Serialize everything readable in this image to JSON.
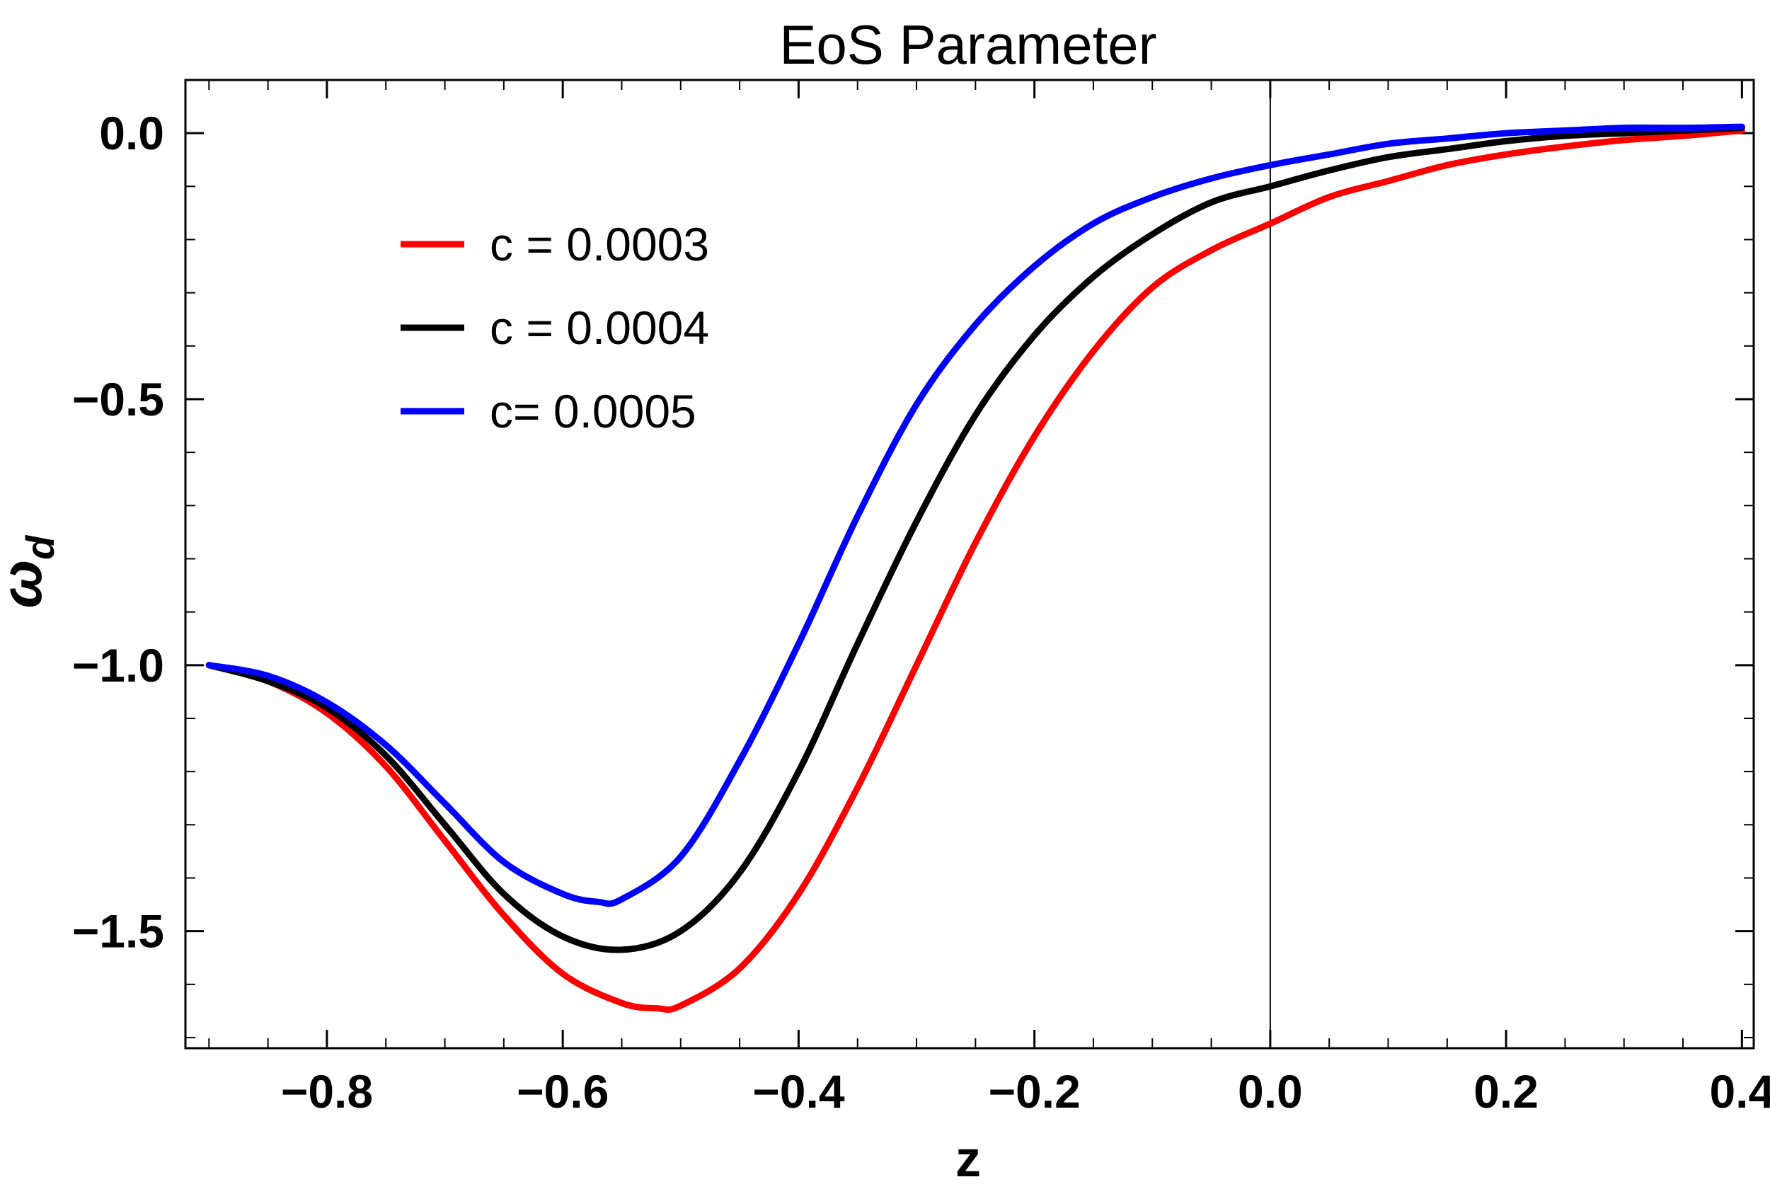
{
  "chart_data": {
    "type": "line",
    "title": "EoS Parameter",
    "xlabel": "z",
    "ylabel": {
      "main": "ω",
      "sub": "d"
    },
    "xlim": [
      -0.92,
      0.41
    ],
    "ylim": [
      -1.72,
      0.1
    ],
    "xticks": [
      -0.8,
      -0.6,
      -0.4,
      -0.2,
      0.0,
      0.2,
      0.4
    ],
    "xtick_labels": [
      "−0.8",
      "−0.6",
      "−0.4",
      "−0.2",
      "0.0",
      "0.2",
      "0.4"
    ],
    "yticks": [
      0.0,
      -0.5,
      -1.0,
      -1.5
    ],
    "ytick_labels": [
      "0.0",
      "−0.5",
      "−1.0",
      "−1.5"
    ],
    "x_minor_step": 0.05,
    "y_minor_step": 0.1,
    "reference_line_x": 0.0,
    "legend_position": "upper-left",
    "series": [
      {
        "name": "c = 0.0003",
        "color": "#ff0000",
        "x": [
          -0.9,
          -0.85,
          -0.8,
          -0.75,
          -0.7,
          -0.65,
          -0.6,
          -0.55,
          -0.52,
          -0.5,
          -0.45,
          -0.4,
          -0.35,
          -0.3,
          -0.25,
          -0.2,
          -0.15,
          -0.1,
          -0.05,
          0.0,
          0.05,
          0.1,
          0.15,
          0.2,
          0.25,
          0.3,
          0.35,
          0.4
        ],
        "values": [
          -1.0,
          -1.03,
          -1.09,
          -1.19,
          -1.33,
          -1.47,
          -1.58,
          -1.635,
          -1.645,
          -1.64,
          -1.57,
          -1.43,
          -1.23,
          -1.0,
          -0.77,
          -0.57,
          -0.41,
          -0.29,
          -0.22,
          -0.17,
          -0.12,
          -0.09,
          -0.06,
          -0.04,
          -0.025,
          -0.013,
          -0.005,
          0.005
        ]
      },
      {
        "name": "c = 0.0004",
        "color": "#000000",
        "x": [
          -0.9,
          -0.85,
          -0.8,
          -0.75,
          -0.7,
          -0.65,
          -0.6,
          -0.55,
          -0.5,
          -0.45,
          -0.4,
          -0.35,
          -0.3,
          -0.25,
          -0.2,
          -0.15,
          -0.1,
          -0.05,
          0.0,
          0.05,
          0.1,
          0.15,
          0.2,
          0.25,
          0.3,
          0.35,
          0.4
        ],
        "values": [
          -1.0,
          -1.03,
          -1.08,
          -1.17,
          -1.3,
          -1.43,
          -1.51,
          -1.535,
          -1.5,
          -1.39,
          -1.2,
          -0.96,
          -0.73,
          -0.53,
          -0.38,
          -0.27,
          -0.19,
          -0.13,
          -0.1,
          -0.07,
          -0.045,
          -0.03,
          -0.015,
          -0.005,
          0.0,
          0.005,
          0.01
        ]
      },
      {
        "name": "c= 0.0005",
        "color": "#0000ff",
        "x": [
          -0.9,
          -0.85,
          -0.8,
          -0.75,
          -0.7,
          -0.65,
          -0.6,
          -0.57,
          -0.55,
          -0.5,
          -0.45,
          -0.4,
          -0.35,
          -0.3,
          -0.25,
          -0.2,
          -0.15,
          -0.1,
          -0.05,
          0.0,
          0.05,
          0.1,
          0.15,
          0.2,
          0.25,
          0.3,
          0.35,
          0.4
        ],
        "values": [
          -1.0,
          -1.02,
          -1.07,
          -1.15,
          -1.26,
          -1.37,
          -1.43,
          -1.445,
          -1.44,
          -1.36,
          -1.18,
          -0.96,
          -0.72,
          -0.51,
          -0.36,
          -0.25,
          -0.17,
          -0.12,
          -0.085,
          -0.06,
          -0.04,
          -0.02,
          -0.01,
          0.0,
          0.005,
          0.01,
          0.01,
          0.012
        ]
      }
    ]
  }
}
